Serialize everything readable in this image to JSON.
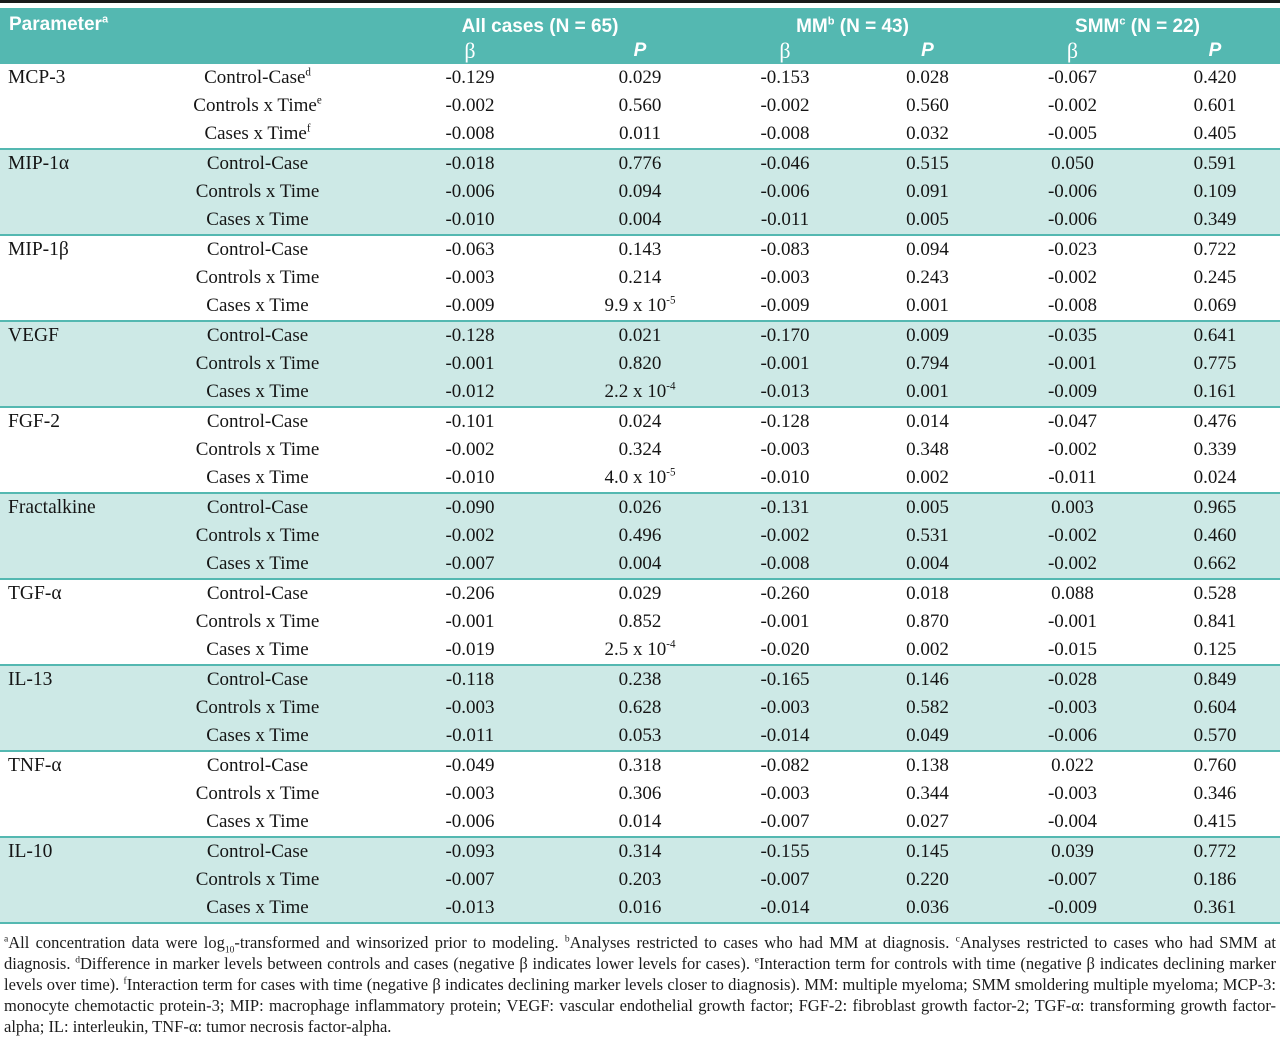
{
  "colors": {
    "header_teal": "#54b8b1",
    "row_shade": "#cde9e6",
    "top_rule": "#1a1a1a"
  },
  "header": {
    "parameter_label": "Parameter^{a}",
    "groups": [
      {
        "label": "All cases (N = 65)"
      },
      {
        "label": "MM^{b} (N = 43)"
      },
      {
        "label": "SMM^{c} (N = 22)"
      }
    ],
    "beta_label": "β",
    "p_label": "P"
  },
  "table": {
    "groups": [
      {
        "parameter": "MCP-3",
        "shaded": false,
        "rows": [
          {
            "label": "Control-Case^{d}",
            "values": [
              "-0.129",
              "0.029",
              "-0.153",
              "0.028",
              "-0.067",
              "0.420"
            ]
          },
          {
            "label": "Controls x Time^{e}",
            "values": [
              "-0.002",
              "0.560",
              "-0.002",
              "0.560",
              "-0.002",
              "0.601"
            ]
          },
          {
            "label": "Cases x Time^{f}",
            "values": [
              "-0.008",
              "0.011",
              "-0.008",
              "0.032",
              "-0.005",
              "0.405"
            ]
          }
        ]
      },
      {
        "parameter": "MIP-1α",
        "shaded": true,
        "rows": [
          {
            "label": "Control-Case",
            "values": [
              "-0.018",
              "0.776",
              "-0.046",
              "0.515",
              "0.050",
              "0.591"
            ]
          },
          {
            "label": "Controls x Time",
            "values": [
              "-0.006",
              "0.094",
              "-0.006",
              "0.091",
              "-0.006",
              "0.109"
            ]
          },
          {
            "label": "Cases x Time",
            "values": [
              "-0.010",
              "0.004",
              "-0.011",
              "0.005",
              "-0.006",
              "0.349"
            ]
          }
        ]
      },
      {
        "parameter": "MIP-1β",
        "shaded": false,
        "rows": [
          {
            "label": "Control-Case",
            "values": [
              "-0.063",
              "0.143",
              "-0.083",
              "0.094",
              "-0.023",
              "0.722"
            ]
          },
          {
            "label": "Controls x Time",
            "values": [
              "-0.003",
              "0.214",
              "-0.003",
              "0.243",
              "-0.002",
              "0.245"
            ]
          },
          {
            "label": "Cases x Time",
            "values": [
              "-0.009",
              "9.9 x 10^{-5}",
              "-0.009",
              "0.001",
              "-0.008",
              "0.069"
            ]
          }
        ]
      },
      {
        "parameter": "VEGF",
        "shaded": true,
        "rows": [
          {
            "label": "Control-Case",
            "values": [
              "-0.128",
              "0.021",
              "-0.170",
              "0.009",
              "-0.035",
              "0.641"
            ]
          },
          {
            "label": "Controls x Time",
            "values": [
              "-0.001",
              "0.820",
              "-0.001",
              "0.794",
              "-0.001",
              "0.775"
            ]
          },
          {
            "label": "Cases x Time",
            "values": [
              "-0.012",
              "2.2 x 10^{-4}",
              "-0.013",
              "0.001",
              "-0.009",
              "0.161"
            ]
          }
        ]
      },
      {
        "parameter": "FGF-2",
        "shaded": false,
        "rows": [
          {
            "label": "Control-Case",
            "values": [
              "-0.101",
              "0.024",
              "-0.128",
              "0.014",
              "-0.047",
              "0.476"
            ]
          },
          {
            "label": "Controls x Time",
            "values": [
              "-0.002",
              "0.324",
              "-0.003",
              "0.348",
              "-0.002",
              "0.339"
            ]
          },
          {
            "label": "Cases x Time",
            "values": [
              "-0.010",
              "4.0 x 10^{-5}",
              "-0.010",
              "0.002",
              "-0.011",
              "0.024"
            ]
          }
        ]
      },
      {
        "parameter": "Fractalkine",
        "shaded": true,
        "rows": [
          {
            "label": "Control-Case",
            "values": [
              "-0.090",
              "0.026",
              "-0.131",
              "0.005",
              "0.003",
              "0.965"
            ]
          },
          {
            "label": "Controls x Time",
            "values": [
              "-0.002",
              "0.496",
              "-0.002",
              "0.531",
              "-0.002",
              "0.460"
            ]
          },
          {
            "label": "Cases x Time",
            "values": [
              "-0.007",
              "0.004",
              "-0.008",
              "0.004",
              "-0.002",
              "0.662"
            ]
          }
        ]
      },
      {
        "parameter": "TGF-α",
        "shaded": false,
        "rows": [
          {
            "label": "Control-Case",
            "values": [
              "-0.206",
              "0.029",
              "-0.260",
              "0.018",
              "0.088",
              "0.528"
            ]
          },
          {
            "label": "Controls x Time",
            "values": [
              "-0.001",
              "0.852",
              "-0.001",
              "0.870",
              "-0.001",
              "0.841"
            ]
          },
          {
            "label": "Cases x Time",
            "values": [
              "-0.019",
              "2.5 x 10^{-4}",
              "-0.020",
              "0.002",
              "-0.015",
              "0.125"
            ]
          }
        ]
      },
      {
        "parameter": "IL-13",
        "shaded": true,
        "rows": [
          {
            "label": "Control-Case",
            "values": [
              "-0.118",
              "0.238",
              "-0.165",
              "0.146",
              "-0.028",
              "0.849"
            ]
          },
          {
            "label": "Controls x Time",
            "values": [
              "-0.003",
              "0.628",
              "-0.003",
              "0.582",
              "-0.003",
              "0.604"
            ]
          },
          {
            "label": "Cases x Time",
            "values": [
              "-0.011",
              "0.053",
              "-0.014",
              "0.049",
              "-0.006",
              "0.570"
            ]
          }
        ]
      },
      {
        "parameter": "TNF-α",
        "shaded": false,
        "rows": [
          {
            "label": "Control-Case",
            "values": [
              "-0.049",
              "0.318",
              "-0.082",
              "0.138",
              "0.022",
              "0.760"
            ]
          },
          {
            "label": "Controls x Time",
            "values": [
              "-0.003",
              "0.306",
              "-0.003",
              "0.344",
              "-0.003",
              "0.346"
            ]
          },
          {
            "label": "Cases x Time",
            "values": [
              "-0.006",
              "0.014",
              "-0.007",
              "0.027",
              "-0.004",
              "0.415"
            ]
          }
        ]
      },
      {
        "parameter": "IL-10",
        "shaded": true,
        "rows": [
          {
            "label": "Control-Case",
            "values": [
              "-0.093",
              "0.314",
              "-0.155",
              "0.145",
              "0.039",
              "0.772"
            ]
          },
          {
            "label": "Controls x Time",
            "values": [
              "-0.007",
              "0.203",
              "-0.007",
              "0.220",
              "-0.007",
              "0.186"
            ]
          },
          {
            "label": "Cases x Time",
            "values": [
              "-0.013",
              "0.016",
              "-0.014",
              "0.036",
              "-0.009",
              "0.361"
            ]
          }
        ]
      }
    ]
  },
  "footnote": "^{a}All concentration data were log_{10}-transformed and winsorized prior to modeling. ^{b}Analyses restricted to cases who had MM at diagnosis. ^{c}Analyses restricted to cases who had SMM at diagnosis. ^{d}Difference in marker levels between controls and cases (negative β indicates lower levels for cases). ^{e}Interaction term for controls with time (negative β indicates declining marker levels over time). ^{f}Interaction term for cases with time (negative β indicates declining marker levels closer to diagnosis). MM: multiple myeloma; SMM smoldering multiple myeloma; MCP-3: monocyte chemotactic protein-3; MIP: macrophage inflammatory protein; VEGF: vascular endothelial growth factor; FGF-2: fibroblast growth factor-2; TGF-α: transforming growth factor-alpha; IL: interleukin, TNF-α: tumor necrosis factor-alpha."
}
